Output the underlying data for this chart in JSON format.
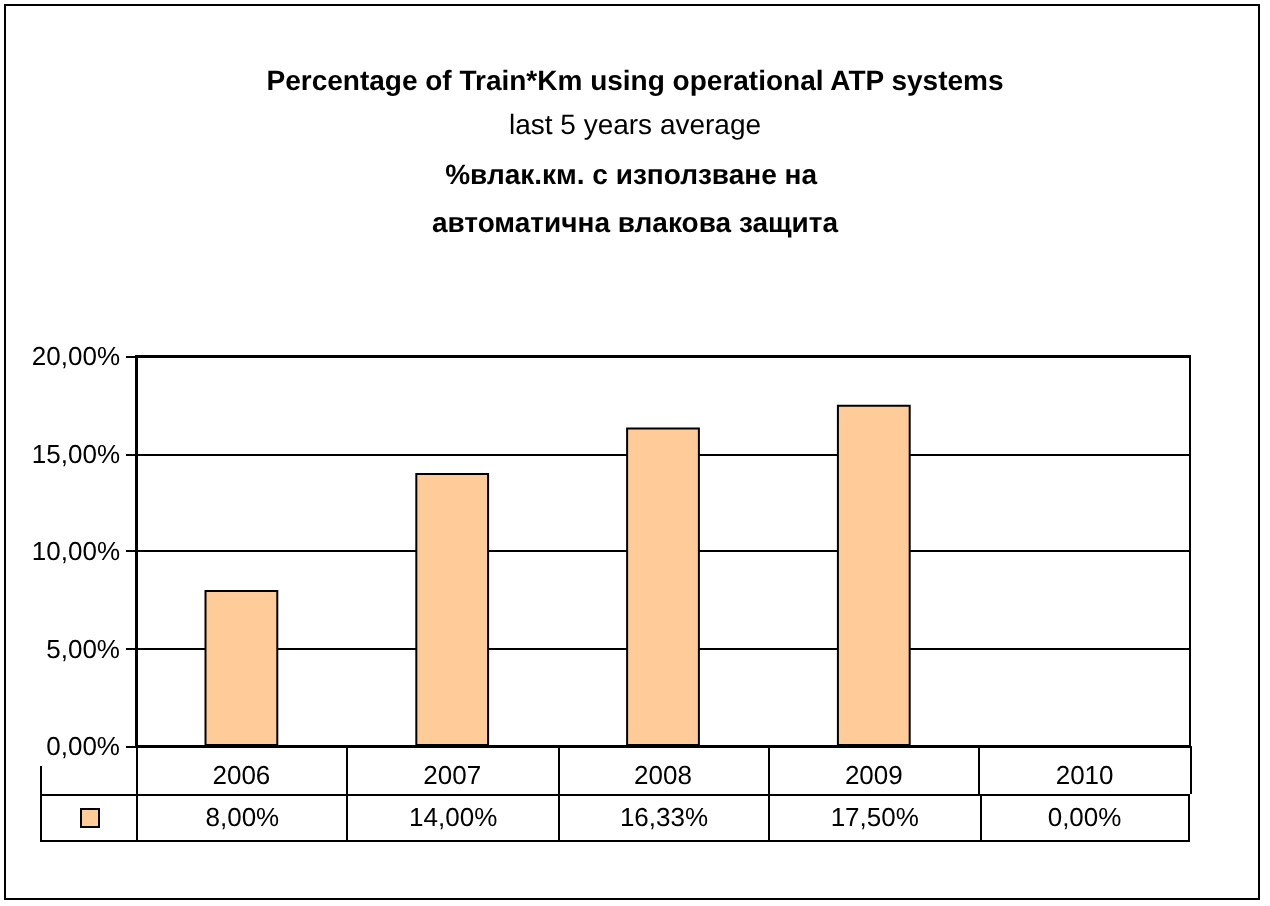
{
  "chart_data": {
    "type": "bar",
    "title": "Percentage of Train*Km using operational ATP systems",
    "subtitle": "last 5 years average",
    "annotations": [
      "%влак.км. с използване на автоматична влакова защита"
    ],
    "categories": [
      "2006",
      "2007",
      "2008",
      "2009",
      "2010"
    ],
    "series": [
      {
        "color": "#ffcc99",
        "values": [
          8,
          14,
          16.33,
          17.5,
          0
        ],
        "value_labels": [
          "8,00%",
          "14,00%",
          "16,33%",
          "17,50%",
          "0,00%"
        ]
      }
    ],
    "ylim": [
      0,
      20
    ],
    "yticks": [
      {
        "value": 0,
        "label": "0,00%"
      },
      {
        "value": 5,
        "label": "5,00%"
      },
      {
        "value": 10,
        "label": "10,00%"
      },
      {
        "value": 15,
        "label": "15,00%"
      },
      {
        "value": 20,
        "label": "20,00%"
      }
    ],
    "grid": "y"
  }
}
